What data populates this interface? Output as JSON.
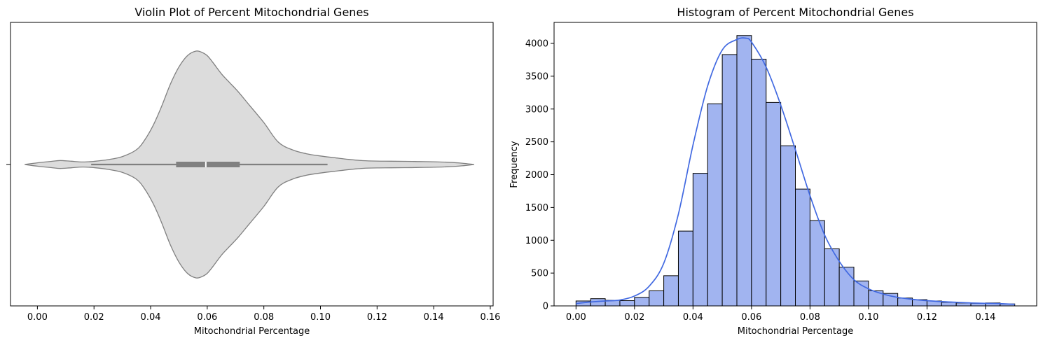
{
  "chart_data": [
    {
      "type": "violin",
      "title": "Violin Plot of Percent Mitochondrial Genes",
      "xlabel": "Mitochondrial Percentage",
      "ylabel": "",
      "xlim": [
        -0.0095,
        0.161
      ],
      "xticks": [
        0.0,
        0.02,
        0.04,
        0.06,
        0.08,
        0.1,
        0.12,
        0.14,
        0.16
      ],
      "xtick_labels": [
        "0.00",
        "0.02",
        "0.04",
        "0.06",
        "0.08",
        "0.10",
        "0.12",
        "0.14",
        "0.16"
      ],
      "fill_color": "#dcdcdc",
      "line_color": "#808080",
      "box": {
        "whisker_low": 0.019,
        "q1": 0.049,
        "median": 0.0595,
        "q3": 0.0715,
        "whisker_high": 0.1025
      },
      "density_profile": {
        "x": [
          -0.0045,
          0.0,
          0.005,
          0.008,
          0.012,
          0.016,
          0.02,
          0.025,
          0.03,
          0.035,
          0.038,
          0.041,
          0.044,
          0.047,
          0.05,
          0.053,
          0.056,
          0.058,
          0.06,
          0.062,
          0.065,
          0.068,
          0.071,
          0.075,
          0.08,
          0.085,
          0.09,
          0.095,
          0.1,
          0.105,
          0.11,
          0.115,
          0.12,
          0.125,
          0.13,
          0.135,
          0.14,
          0.145,
          0.15,
          0.1543
        ],
        "relative_width": [
          0.0,
          0.015,
          0.028,
          0.035,
          0.029,
          0.022,
          0.028,
          0.043,
          0.07,
          0.13,
          0.22,
          0.35,
          0.52,
          0.71,
          0.86,
          0.96,
          1.0,
          0.99,
          0.96,
          0.9,
          0.8,
          0.72,
          0.64,
          0.52,
          0.37,
          0.2,
          0.13,
          0.095,
          0.075,
          0.06,
          0.045,
          0.034,
          0.03,
          0.029,
          0.028,
          0.026,
          0.024,
          0.02,
          0.012,
          0.0
        ]
      }
    },
    {
      "type": "bar",
      "title": "Histogram of Percent Mitochondrial Genes",
      "xlabel": "Mitochondrial Percentage",
      "ylabel": "Frequency",
      "xlim": [
        -0.0075,
        0.1575
      ],
      "ylim": [
        0,
        4320
      ],
      "xticks": [
        0.0,
        0.02,
        0.04,
        0.06,
        0.08,
        0.1,
        0.12,
        0.14
      ],
      "xtick_labels": [
        "0.00",
        "0.02",
        "0.04",
        "0.06",
        "0.08",
        "0.10",
        "0.12",
        "0.14"
      ],
      "yticks": [
        0,
        500,
        1000,
        1500,
        2000,
        2500,
        3000,
        3500,
        4000
      ],
      "ytick_labels": [
        "0",
        "500",
        "1000",
        "1500",
        "2000",
        "2500",
        "3000",
        "3500",
        "4000"
      ],
      "bin_edges": [
        0.0,
        0.005,
        0.01,
        0.015,
        0.02,
        0.025,
        0.03,
        0.035,
        0.04,
        0.045,
        0.05,
        0.055,
        0.06,
        0.065,
        0.07,
        0.075,
        0.08,
        0.085,
        0.09,
        0.095,
        0.1,
        0.105,
        0.11,
        0.115,
        0.12,
        0.125,
        0.13,
        0.135,
        0.14,
        0.145,
        0.15
      ],
      "values": [
        75,
        110,
        85,
        80,
        130,
        230,
        460,
        1140,
        2020,
        3080,
        3830,
        4120,
        3760,
        3100,
        2440,
        1780,
        1300,
        870,
        590,
        380,
        230,
        190,
        120,
        95,
        75,
        55,
        45,
        40,
        45,
        30
      ],
      "bar_color": "#a1b4f0",
      "edge_color": "#000000",
      "kde": {
        "color": "#4169e1",
        "x": [
          0.0,
          0.005,
          0.01,
          0.015,
          0.02,
          0.025,
          0.03,
          0.035,
          0.04,
          0.045,
          0.05,
          0.055,
          0.058,
          0.06,
          0.065,
          0.07,
          0.075,
          0.08,
          0.085,
          0.09,
          0.095,
          0.1,
          0.105,
          0.11,
          0.115,
          0.12,
          0.125,
          0.13,
          0.135,
          0.14,
          0.145,
          0.15
        ],
        "y": [
          35,
          60,
          75,
          90,
          150,
          300,
          650,
          1400,
          2450,
          3350,
          3900,
          4060,
          4080,
          4020,
          3640,
          3060,
          2380,
          1680,
          1080,
          680,
          400,
          260,
          180,
          130,
          100,
          80,
          65,
          55,
          45,
          40,
          35,
          25
        ]
      }
    }
  ]
}
